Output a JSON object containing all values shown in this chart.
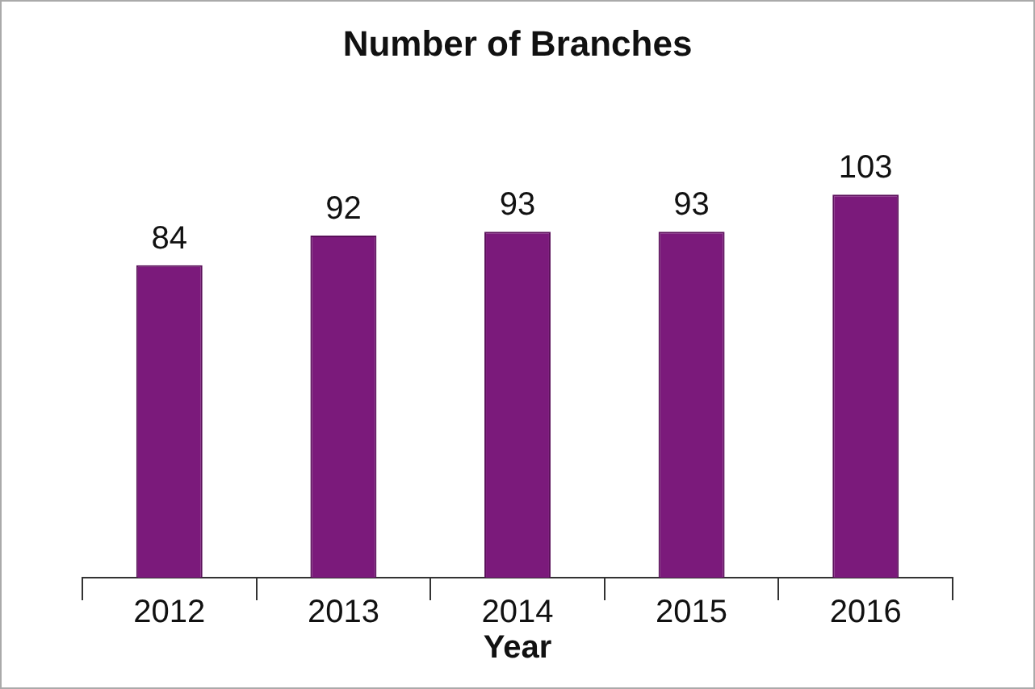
{
  "chart_data": {
    "type": "bar",
    "title": "Number of Branches",
    "xlabel": "Year",
    "categories": [
      "2012",
      "2013",
      "2014",
      "2015",
      "2016"
    ],
    "values": [
      84,
      92,
      93,
      93,
      103
    ],
    "color": "#7b1a7b",
    "data_labels": true,
    "grid": false,
    "legend": false
  }
}
